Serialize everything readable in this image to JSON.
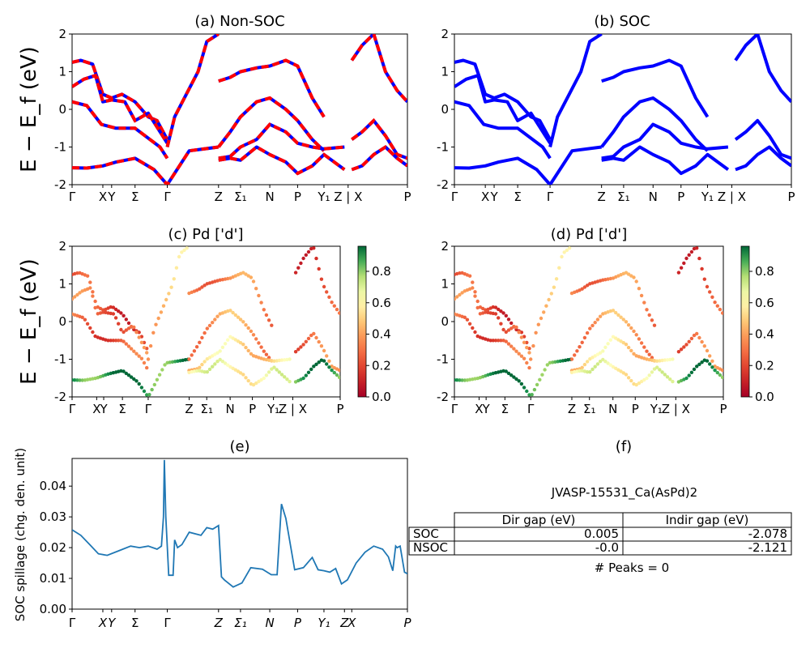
{
  "figure_title": "",
  "ylabel_band": "E − E_f (eV)",
  "panels": {
    "a": {
      "title": "(a) Non-SOC"
    },
    "b": {
      "title": "(b) SOC"
    },
    "c": {
      "title": "(c)  Pd ['d']"
    },
    "d": {
      "title": "(d) Pd ['d']"
    },
    "e": {
      "title": "(e)",
      "ylabel": "SOC spillage (chg. den. unit)"
    },
    "f": {
      "title": "(f)"
    }
  },
  "kpath_top": [
    "Γ",
    "X",
    "Y",
    "Σ",
    "Γ",
    "Z",
    "Σ₁",
    "N",
    "P",
    "Y₁",
    "Z | X",
    "P"
  ],
  "kpath_spill": [
    "Γ",
    "X",
    "Y",
    "Σ",
    "Γ",
    "Z",
    "Σ₁",
    "N",
    "P",
    "Y₁",
    "Z",
    "X",
    "P"
  ],
  "colorbar": {
    "ticks": [
      "0.0",
      "0.2",
      "0.4",
      "0.6",
      "0.8"
    ],
    "colormap": "RdYlGn"
  },
  "colors": {
    "soc": "#0000ff",
    "nsoc": "#ff0000",
    "spillage": "#1f77b4"
  },
  "table": {
    "jid": "JVASP-15531_Ca(AsPd)2",
    "headers": [
      "Dir gap (eV)",
      "Indir gap (eV)"
    ],
    "rows": [
      {
        "label": "SOC",
        "dir": "0.005",
        "indir": "-2.078"
      },
      {
        "label": "NSOC",
        "dir": "-0.0",
        "indir": "-2.121"
      }
    ],
    "peaks": "# Peaks = 0"
  },
  "chart_data": [
    {
      "type": "line",
      "panel": "a",
      "title": "(a) Non-SOC",
      "ylabel": "E − E_f (eV)",
      "ylim": [
        -2,
        2
      ],
      "yticks": [
        -2,
        -1,
        0,
        1,
        2
      ],
      "xlim": [
        0,
        11.45
      ],
      "kpoints": [
        0,
        1.05,
        1.35,
        2.15,
        3.25,
        5.0,
        5.75,
        6.75,
        7.7,
        8.6,
        9.3,
        9.55,
        11.45
      ],
      "series": [
        {
          "values_x": [
            0,
            0.3,
            0.7,
            1.05,
            1.35,
            1.7,
            2.15,
            2.6,
            2.9,
            3.25
          ],
          "values_y": [
            1.25,
            1.3,
            1.2,
            0.4,
            0.3,
            0.4,
            0.2,
            -0.2,
            -0.3,
            -0.8
          ]
        },
        {
          "values_x": [
            0,
            0.4,
            0.8,
            1.05,
            1.35,
            1.8,
            2.15,
            2.6,
            3.25
          ],
          "values_y": [
            0.6,
            0.8,
            0.9,
            0.2,
            0.25,
            0.2,
            -0.3,
            -0.1,
            -0.9
          ]
        },
        {
          "values_x": [
            0,
            0.5,
            1.0,
            1.5,
            2.15,
            3.0,
            3.25
          ],
          "values_y": [
            0.2,
            0.1,
            -0.4,
            -0.5,
            -0.5,
            -1.0,
            -1.3
          ]
        },
        {
          "values_x": [
            0,
            0.5,
            1.05,
            1.5,
            2.15,
            2.8,
            3.25,
            4.0,
            5.0
          ],
          "values_y": [
            -1.55,
            -1.56,
            -1.5,
            -1.4,
            -1.3,
            -1.6,
            -2.0,
            -1.1,
            -1.0
          ]
        },
        {
          "values_x": [
            3.25,
            3.5,
            3.9,
            4.3,
            4.6,
            5.0
          ],
          "values_y": [
            -1.0,
            -0.2,
            0.4,
            1.0,
            1.8,
            2.0
          ]
        },
        {
          "values_x": [
            5.0,
            5.4,
            5.75,
            6.3,
            6.75,
            7.3,
            7.7,
            8.2,
            8.6
          ],
          "values_y": [
            0.75,
            0.85,
            1.0,
            1.1,
            1.15,
            1.3,
            1.15,
            0.3,
            -0.2
          ]
        },
        {
          "values_x": [
            5.0,
            5.4,
            5.75,
            6.3,
            6.75,
            7.3,
            7.7,
            8.2,
            8.6
          ],
          "values_y": [
            -1.0,
            -0.6,
            -0.2,
            0.2,
            0.3,
            0.0,
            -0.3,
            -0.8,
            -1.1
          ]
        },
        {
          "values_x": [
            5.0,
            5.4,
            5.75,
            6.3,
            6.75,
            7.3,
            7.7,
            8.2,
            8.6,
            9.3
          ],
          "values_y": [
            -1.3,
            -1.25,
            -1.0,
            -0.8,
            -0.4,
            -0.6,
            -0.9,
            -1.0,
            -1.05,
            -1.0
          ]
        },
        {
          "values_x": [
            5.0,
            5.4,
            5.75,
            6.3,
            6.75,
            7.3,
            7.7,
            8.2,
            8.6,
            9.3
          ],
          "values_y": [
            -1.35,
            -1.3,
            -1.35,
            -1.0,
            -1.2,
            -1.4,
            -1.7,
            -1.5,
            -1.2,
            -1.6
          ]
        },
        {
          "values_x": [
            9.55,
            9.9,
            10.3,
            10.7,
            11.1,
            11.45
          ],
          "values_y": [
            1.3,
            1.7,
            2.0,
            1.0,
            0.5,
            0.2
          ]
        },
        {
          "values_x": [
            9.55,
            9.9,
            10.3,
            10.7,
            11.1,
            11.45
          ],
          "values_y": [
            -0.8,
            -0.6,
            -0.3,
            -0.7,
            -1.2,
            -1.3
          ]
        },
        {
          "values_x": [
            9.55,
            9.9,
            10.3,
            10.7,
            11.1,
            11.45
          ],
          "values_y": [
            -1.6,
            -1.5,
            -1.2,
            -1.0,
            -1.3,
            -1.5
          ]
        }
      ]
    },
    {
      "type": "line",
      "panel": "b",
      "title": "(b) SOC",
      "ylabel": "",
      "ylim": [
        -2,
        2
      ],
      "same_bands_as": "a"
    },
    {
      "type": "scatter",
      "panel": "c",
      "title": "(c)  Pd ['d']",
      "ylabel": "E − E_f (eV)",
      "ylim": [
        -2,
        2
      ],
      "colorbar_range": [
        0,
        1
      ],
      "color_weight_by_band": [
        0.2,
        0.3,
        0.25,
        0.95,
        0.5,
        0.35,
        0.4,
        0.55,
        0.65,
        0.2,
        0.3,
        0.9
      ]
    },
    {
      "type": "scatter",
      "panel": "d",
      "title": "(d) Pd ['d']",
      "ylim": [
        -2,
        2
      ],
      "colorbar_range": [
        0,
        1
      ],
      "color_weight_by_band": [
        0.2,
        0.3,
        0.25,
        0.95,
        0.5,
        0.35,
        0.4,
        0.55,
        0.65,
        0.2,
        0.3,
        0.9
      ]
    },
    {
      "type": "line",
      "panel": "e",
      "title": "(e)",
      "ylabel": "SOC spillage (chg. den. unit)",
      "ylim": [
        0,
        0.049
      ],
      "yticks": [
        0.0,
        0.01,
        0.02,
        0.03,
        0.04
      ],
      "xlim": [
        0,
        11.45
      ],
      "x": [
        0,
        0.3,
        0.6,
        0.9,
        1.2,
        1.6,
        2.0,
        2.3,
        2.6,
        2.9,
        3.05,
        3.12,
        3.15,
        3.2,
        3.3,
        3.45,
        3.5,
        3.6,
        3.75,
        4.0,
        4.4,
        4.6,
        4.8,
        5.0,
        5.1,
        5.2,
        5.5,
        5.8,
        6.1,
        6.5,
        6.8,
        6.95,
        7.0,
        7.15,
        7.3,
        7.6,
        7.9,
        8.2,
        8.4,
        8.6,
        8.8,
        9.0,
        9.2,
        9.4,
        9.7,
        10.0,
        10.3,
        10.6,
        10.8,
        10.95,
        11.05,
        11.1,
        11.2,
        11.35,
        11.45
      ],
      "y": [
        0.0258,
        0.024,
        0.021,
        0.018,
        0.0175,
        0.019,
        0.0205,
        0.02,
        0.0205,
        0.0195,
        0.0205,
        0.03,
        0.0485,
        0.03,
        0.011,
        0.011,
        0.0225,
        0.02,
        0.021,
        0.025,
        0.024,
        0.0265,
        0.026,
        0.0272,
        0.0105,
        0.0095,
        0.0072,
        0.0085,
        0.0135,
        0.013,
        0.0112,
        0.0112,
        0.0112,
        0.0342,
        0.0295,
        0.0128,
        0.0135,
        0.0168,
        0.0128,
        0.0125,
        0.012,
        0.0132,
        0.0082,
        0.0095,
        0.015,
        0.0185,
        0.0205,
        0.0195,
        0.017,
        0.0125,
        0.0205,
        0.02,
        0.0205,
        0.012,
        0.0115
      ]
    }
  ]
}
